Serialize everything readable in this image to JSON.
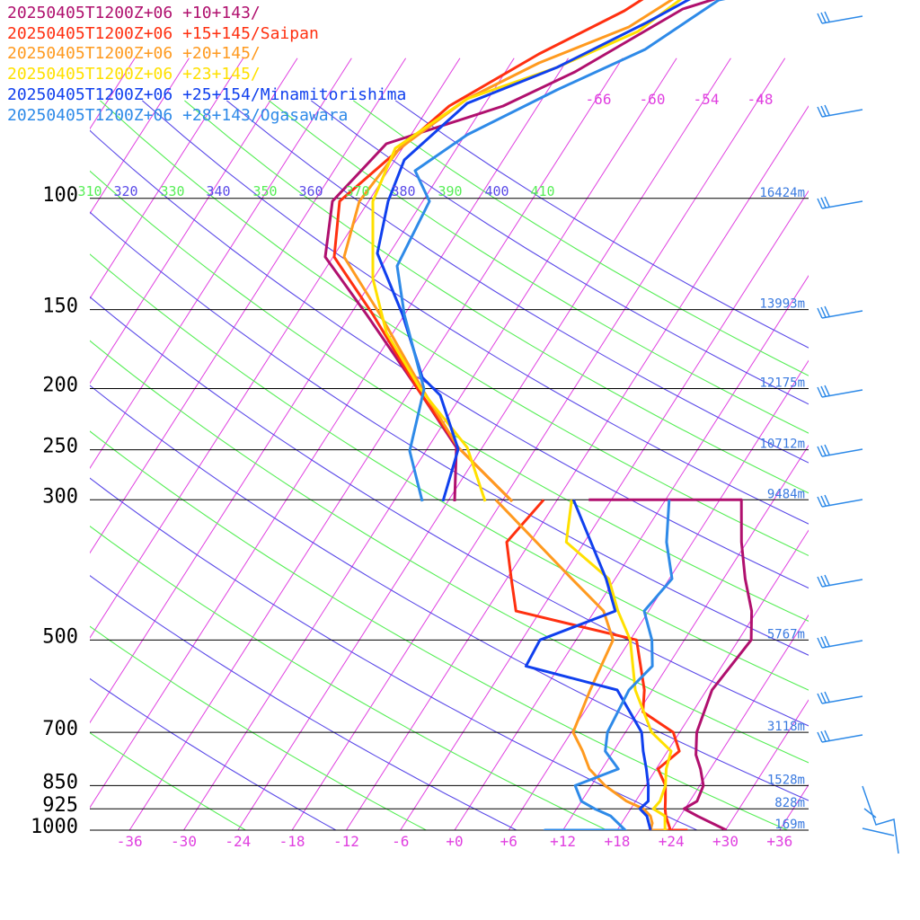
{
  "chart_data": {
    "type": "line",
    "title": "",
    "xlabel": "",
    "ylabel": "",
    "x_tick_labels": [
      "-36",
      "-30",
      "-24",
      "-18",
      "-12",
      "-6",
      "+0",
      "+6",
      "+12",
      "+18",
      "+24",
      "+30",
      "+36"
    ],
    "x_ticks": [
      -36,
      -30,
      -24,
      -18,
      -12,
      -6,
      0,
      6,
      12,
      18,
      24,
      30,
      36
    ],
    "pressure_levels": [
      100,
      150,
      200,
      250,
      300,
      500,
      700,
      850,
      925,
      1000
    ],
    "pressure_labels": [
      "100",
      "150",
      "200",
      "250",
      "300",
      "500",
      "700",
      "850",
      "925",
      "1000"
    ],
    "height_labels": [
      {
        "p": 100,
        "label": "16424m"
      },
      {
        "p": 150,
        "label": "13993m"
      },
      {
        "p": 200,
        "label": "12175m"
      },
      {
        "p": 250,
        "label": "10712m"
      },
      {
        "p": 300,
        "label": "9484m"
      },
      {
        "p": 500,
        "label": "5767m"
      },
      {
        "p": 700,
        "label": "3118m"
      },
      {
        "p": 850,
        "label": "1528m"
      },
      {
        "p": 925,
        "label": "828m"
      },
      {
        "p": 1000,
        "label": "169m"
      }
    ],
    "theta_labels": [
      "310",
      "320",
      "330",
      "340",
      "350",
      "360",
      "370",
      "380",
      "390",
      "400",
      "410"
    ],
    "isotherm_top_labels": [
      "-66",
      "-60",
      "-54",
      "-48"
    ],
    "series": [
      {
        "name": "20250405T1200Z+06 +10+143/",
        "color": "#b0106e",
        "x": [
          -8.5,
          8.4,
          11.4,
          14.4,
          17.4,
          19.4,
          18.6,
          19.9,
          21.4,
          22.9,
          24.4,
          24.8,
          23.9,
          25.9,
          30.1
        ],
        "y": [
          300,
          300,
          350,
          400,
          450,
          500,
          600,
          700,
          760,
          800,
          850,
          900,
          925,
          950,
          1000
        ]
      },
      {
        "name": "20250405T1200Z+06 +15+145/Saipan",
        "color": "#ff3010",
        "x": [
          -13.5,
          -14.6,
          -11.5,
          -8.7,
          6.7,
          11.1,
          12.5,
          17.3,
          19.3,
          18.2,
          20.2,
          21.3,
          21.8,
          22.4,
          23.9,
          21.6,
          22.1,
          25.8
        ],
        "y": [
          300,
          350,
          400,
          450,
          500,
          600,
          650,
          700,
          750,
          800,
          850,
          900,
          925,
          950,
          1000,
          1000,
          1000,
          1000
        ]
      },
      {
        "name": "20250405T1200Z+06 +20+145/",
        "color": "#ff9a1f",
        "x": [
          -18.8,
          -4.8,
          1.0,
          4.1,
          5.1,
          6.2,
          8.6,
          10.6,
          13.5,
          17.0,
          19.4,
          20.7,
          21.4,
          21.7,
          23.5,
          22.8
        ],
        "y": [
          300,
          400,
          450,
          500,
          600,
          700,
          750,
          800,
          850,
          900,
          925,
          950,
          975,
          1000,
          1000,
          1000
        ]
      },
      {
        "name": "20250405T1200Z+06 +23+145/",
        "color": "#ffe000",
        "x": [
          -10.4,
          -8.0,
          -0.7,
          2.6,
          6.0,
          10.1,
          14.9,
          18.4,
          19.1,
          20.2,
          20.7,
          20.5,
          22.3,
          23.3
        ],
        "y": [
          300,
          350,
          400,
          450,
          500,
          600,
          700,
          750,
          800,
          850,
          900,
          925,
          950,
          1000
        ]
      },
      {
        "name": "20250405T1200Z+06 +25+154/Minamitorishima",
        "color": "#1040ee",
        "x": [
          -10.2,
          -1.0,
          2.3,
          -4.0,
          -3.7,
          8.1,
          13.8,
          15.3,
          16.9,
          18.3,
          19.4,
          19.0,
          20.3,
          21.7
        ],
        "y": [
          300,
          400,
          450,
          500,
          550,
          600,
          700,
          750,
          800,
          850,
          900,
          925,
          950,
          1000
        ]
      },
      {
        "name": "20250405T1200Z+06 +28+143/Ogasawara",
        "color": "#2e8ae8",
        "x": [
          0.4,
          3.1,
          6.3,
          5.5,
          8.4,
          10.3,
          9.4,
          10.0,
          11.1,
          13.8,
          10.2,
          12.0,
          14.0,
          16.3,
          18.9,
          10.0,
          10.3
        ],
        "y": [
          300,
          350,
          400,
          450,
          500,
          550,
          600,
          700,
          750,
          800,
          850,
          900,
          925,
          950,
          1000,
          1000,
          1000
        ]
      }
    ]
  }
}
